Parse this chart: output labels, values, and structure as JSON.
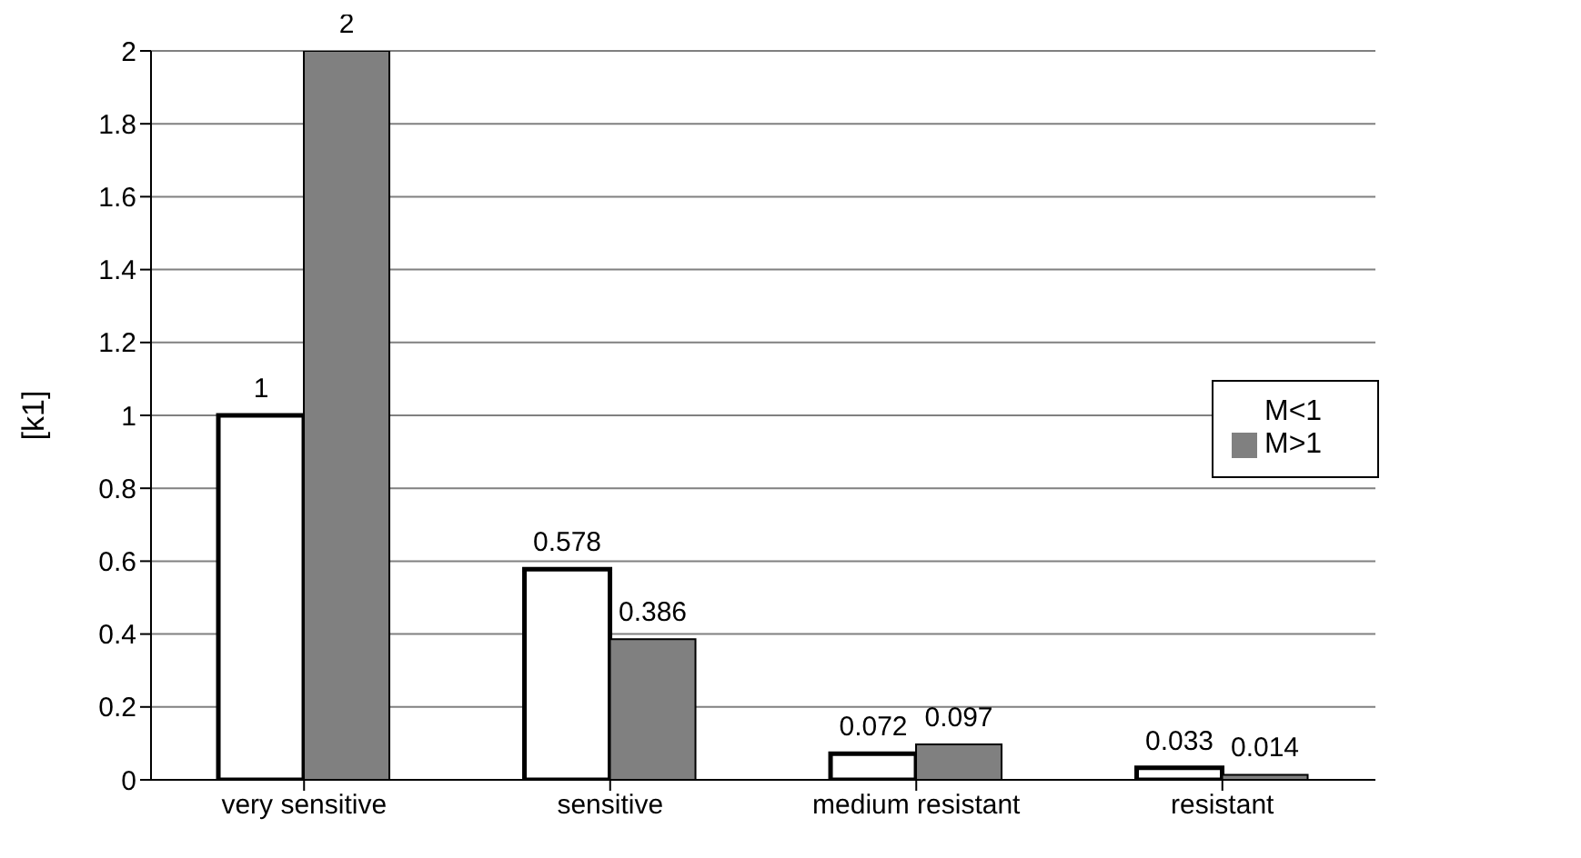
{
  "chart_data": {
    "type": "bar",
    "ylabel": "[k1]",
    "categories": [
      "very sensitive",
      "sensitive",
      "medium resistant",
      "resistant"
    ],
    "series": [
      {
        "name": "M<1",
        "color": "#ffffff",
        "values": [
          1,
          0.578,
          0.072,
          0.033
        ]
      },
      {
        "name": "M>1",
        "color": "#808080",
        "values": [
          2,
          0.386,
          0.097,
          0.014
        ]
      }
    ],
    "ylim": [
      0,
      2
    ],
    "yticks": [
      0,
      0.2,
      0.4,
      0.6,
      0.8,
      1,
      1.2,
      1.4,
      1.6,
      1.8,
      2
    ],
    "grid": "y",
    "legend": "right",
    "data_labels": true
  }
}
